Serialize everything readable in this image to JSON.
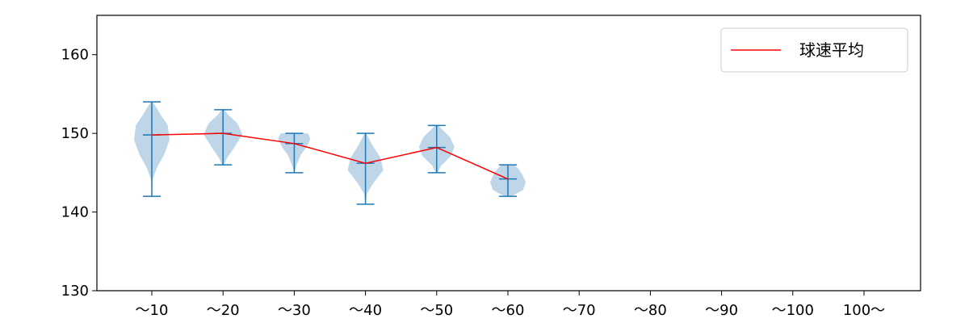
{
  "chart_data": {
    "type": "violin",
    "categories": [
      "～10",
      "～20",
      "～30",
      "～40",
      "～50",
      "～60",
      "～70",
      "～80",
      "～90",
      "～100",
      "100～"
    ],
    "violins": [
      {
        "category": "～10",
        "min": 142,
        "max": 154,
        "mean": 149.8
      },
      {
        "category": "～20",
        "min": 146,
        "max": 153,
        "mean": 150.0
      },
      {
        "category": "～30",
        "min": 145,
        "max": 150,
        "mean": 148.7
      },
      {
        "category": "～40",
        "min": 141,
        "max": 150,
        "mean": 146.2
      },
      {
        "category": "～50",
        "min": 145,
        "max": 151,
        "mean": 148.2
      },
      {
        "category": "～60",
        "min": 142,
        "max": 146,
        "mean": 144.2
      }
    ],
    "series": [
      {
        "name": "球速平均",
        "values": [
          149.8,
          150.0,
          148.7,
          146.2,
          148.2,
          144.2
        ],
        "color": "#ff0000"
      }
    ],
    "yticks": [
      130,
      140,
      150,
      160
    ],
    "ylim": [
      130,
      165
    ],
    "legend_position": "top-right",
    "grid": false,
    "colors": {
      "violin_fill": "#a8c8e0",
      "violin_line": "#1f77b4",
      "mean_line": "#ff0000",
      "axis": "#000000"
    }
  }
}
